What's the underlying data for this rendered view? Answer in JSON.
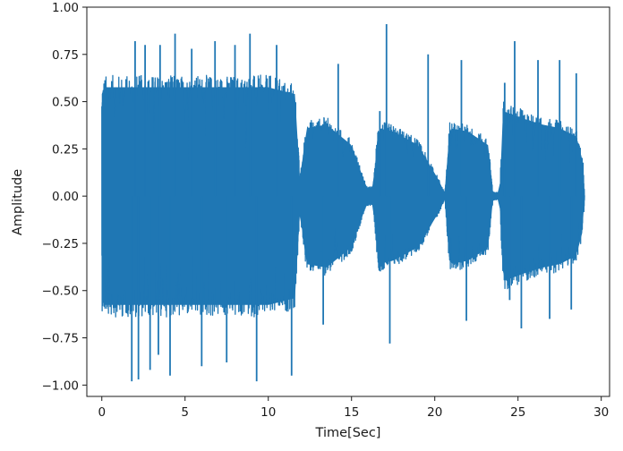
{
  "chart_data": {
    "type": "line",
    "title": "",
    "xlabel": "Time[Sec]",
    "ylabel": "Amplitude",
    "xlim": [
      -0.9,
      30.5
    ],
    "ylim": [
      -1.06,
      1.0
    ],
    "x_ticks": [
      0,
      5,
      10,
      15,
      20,
      25,
      30
    ],
    "x_tick_labels": [
      "0",
      "5",
      "10",
      "15",
      "20",
      "25",
      "30"
    ],
    "y_ticks": [
      1.0,
      0.75,
      0.5,
      0.25,
      0.0,
      -0.25,
      -0.5,
      -0.75,
      -1.0
    ],
    "y_tick_labels": [
      "1.00",
      "0.75",
      "0.50",
      "0.25",
      "0.00",
      "−0.25",
      "−0.50",
      "−0.75",
      "−1.00"
    ],
    "grid": false,
    "legend": "none",
    "series": [
      {
        "color": "#1f77b4",
        "duration": 29.0,
        "envelope": {
          "t": [
            0.0,
            0.1,
            2.0,
            4.0,
            6.0,
            8.0,
            10.0,
            11.6,
            11.9,
            12.3,
            13.5,
            15.0,
            15.9,
            16.3,
            16.6,
            17.5,
            19.0,
            20.2,
            20.6,
            20.9,
            22.0,
            23.2,
            23.5,
            23.9,
            24.1,
            25.5,
            26.5,
            27.5,
            28.5,
            28.9,
            29.0
          ],
          "upper": [
            0.6,
            0.64,
            0.64,
            0.64,
            0.64,
            0.64,
            0.64,
            0.6,
            0.1,
            0.4,
            0.42,
            0.3,
            0.05,
            0.05,
            0.4,
            0.38,
            0.3,
            0.1,
            0.02,
            0.4,
            0.38,
            0.3,
            0.02,
            0.02,
            0.5,
            0.45,
            0.42,
            0.4,
            0.35,
            0.2,
            0.0
          ],
          "lower": [
            -0.6,
            -0.64,
            -0.64,
            -0.64,
            -0.64,
            -0.64,
            -0.64,
            -0.6,
            -0.1,
            -0.4,
            -0.42,
            -0.3,
            -0.05,
            -0.05,
            -0.4,
            -0.38,
            -0.3,
            -0.1,
            -0.02,
            -0.4,
            -0.38,
            -0.3,
            -0.02,
            -0.02,
            -0.5,
            -0.45,
            -0.42,
            -0.4,
            -0.35,
            -0.2,
            0.0
          ]
        },
        "peaks": [
          {
            "t": 1.8,
            "y": -0.98
          },
          {
            "t": 2.0,
            "y": 0.82
          },
          {
            "t": 2.2,
            "y": -0.97
          },
          {
            "t": 2.6,
            "y": 0.8
          },
          {
            "t": 2.9,
            "y": -0.92
          },
          {
            "t": 3.4,
            "y": -0.84
          },
          {
            "t": 3.5,
            "y": 0.8
          },
          {
            "t": 4.1,
            "y": -0.95
          },
          {
            "t": 4.4,
            "y": 0.86
          },
          {
            "t": 5.4,
            "y": 0.78
          },
          {
            "t": 6.0,
            "y": -0.9
          },
          {
            "t": 6.8,
            "y": 0.82
          },
          {
            "t": 7.5,
            "y": -0.88
          },
          {
            "t": 8.0,
            "y": 0.8
          },
          {
            "t": 8.9,
            "y": 0.86
          },
          {
            "t": 9.3,
            "y": -0.98
          },
          {
            "t": 10.5,
            "y": 0.8
          },
          {
            "t": 11.4,
            "y": -0.95
          },
          {
            "t": 13.3,
            "y": -0.68
          },
          {
            "t": 14.2,
            "y": 0.7
          },
          {
            "t": 16.7,
            "y": 0.45
          },
          {
            "t": 17.1,
            "y": 0.91
          },
          {
            "t": 17.3,
            "y": -0.78
          },
          {
            "t": 19.6,
            "y": 0.75
          },
          {
            "t": 21.6,
            "y": 0.72
          },
          {
            "t": 21.9,
            "y": -0.66
          },
          {
            "t": 24.2,
            "y": 0.6
          },
          {
            "t": 24.5,
            "y": -0.55
          },
          {
            "t": 24.8,
            "y": 0.82
          },
          {
            "t": 25.2,
            "y": -0.7
          },
          {
            "t": 26.2,
            "y": 0.72
          },
          {
            "t": 26.9,
            "y": -0.65
          },
          {
            "t": 27.5,
            "y": 0.72
          },
          {
            "t": 28.2,
            "y": -0.6
          },
          {
            "t": 28.5,
            "y": 0.65
          }
        ]
      }
    ]
  }
}
